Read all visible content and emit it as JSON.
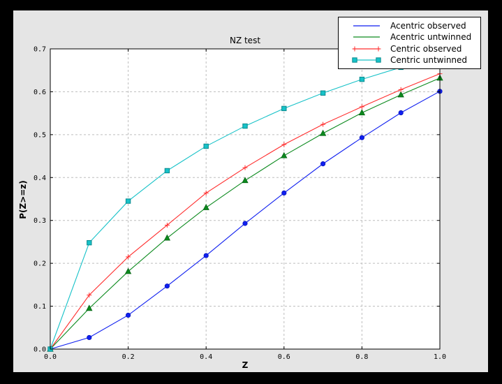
{
  "window": {
    "frame_bg": "#000000",
    "figure_bg": "#e5e5e5",
    "axes_bg": "#ffffff"
  },
  "chart_data": {
    "type": "line",
    "title": "NZ test",
    "xlabel": "Z",
    "ylabel": "P(Z>=z)",
    "xlim": [
      0.0,
      1.0
    ],
    "ylim": [
      0.0,
      0.7
    ],
    "xticks": [
      0.0,
      0.2,
      0.4,
      0.6,
      0.8,
      1.0
    ],
    "yticks": [
      0.0,
      0.1,
      0.2,
      0.3,
      0.4,
      0.5,
      0.6,
      0.7
    ],
    "grid": true,
    "grid_color": "#bdbdbd",
    "legend_position": "upper right",
    "x": [
      0.0,
      0.1,
      0.2,
      0.3,
      0.4,
      0.5,
      0.6,
      0.7,
      0.8,
      0.9,
      1.0
    ],
    "series": [
      {
        "name": "Acentric observed",
        "color": "#0f1ff0",
        "edge_color": "#0b17b8",
        "marker": "circle",
        "legend_marker": "none",
        "values": [
          0.0,
          0.027,
          0.079,
          0.147,
          0.218,
          0.293,
          0.364,
          0.432,
          0.493,
          0.551,
          0.601
        ]
      },
      {
        "name": "Acentric untwinned",
        "color": "#0c8a1e",
        "edge_color": "#066414",
        "marker": "triangle",
        "legend_marker": "none",
        "values": [
          0.0,
          0.095,
          0.181,
          0.259,
          0.33,
          0.393,
          0.451,
          0.503,
          0.551,
          0.593,
          0.632
        ]
      },
      {
        "name": "Centric observed",
        "color": "#ff2d2d",
        "edge_color": "#ff2d2d",
        "marker": "plus",
        "legend_marker": "plus",
        "values": [
          0.0,
          0.126,
          0.215,
          0.289,
          0.364,
          0.423,
          0.477,
          0.524,
          0.565,
          0.605,
          0.642
        ]
      },
      {
        "name": "Centric untwinned",
        "color": "#17c2c8",
        "edge_color": "#0b8a8e",
        "marker": "square",
        "legend_marker": "square",
        "values": [
          0.0,
          0.248,
          0.345,
          0.416,
          0.473,
          0.52,
          0.561,
          0.597,
          0.629,
          0.657,
          0.683
        ]
      }
    ]
  }
}
